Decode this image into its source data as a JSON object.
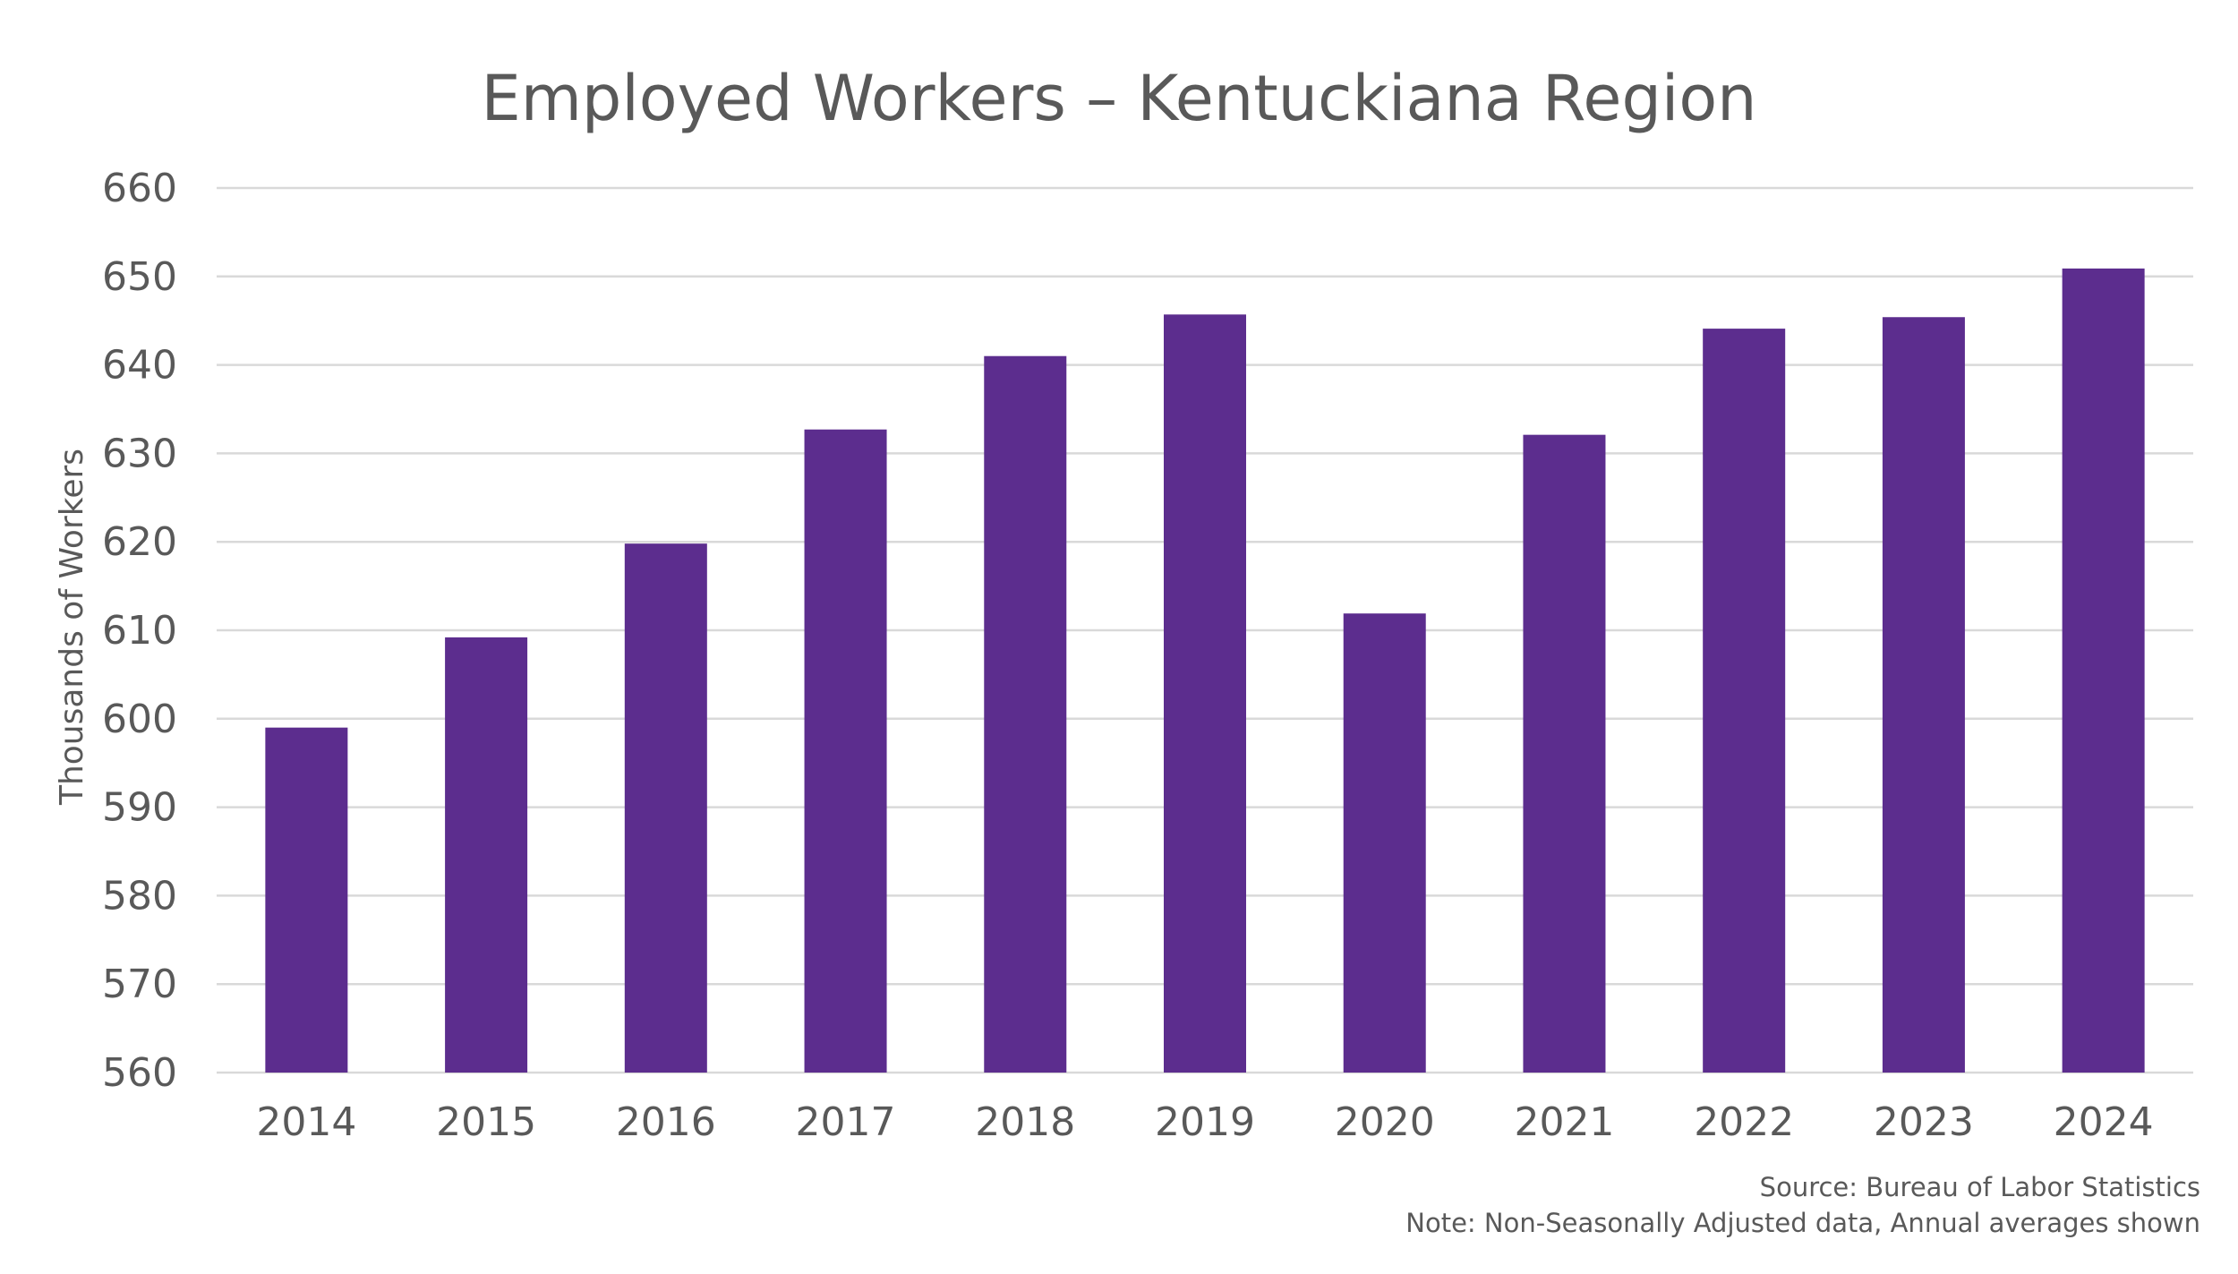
{
  "chart_data": {
    "type": "bar",
    "title": "Employed Workers – Kentuckiana Region",
    "xlabel": "",
    "ylabel": "Thousands of Workers",
    "categories": [
      "2014",
      "2015",
      "2016",
      "2017",
      "2018",
      "2019",
      "2020",
      "2021",
      "2022",
      "2023",
      "2024"
    ],
    "values": [
      599.0,
      609.2,
      619.8,
      632.7,
      641.0,
      645.7,
      611.9,
      632.1,
      644.1,
      645.4,
      650.9
    ],
    "ylim": [
      560,
      660
    ],
    "yticks": [
      "560",
      "570",
      "580",
      "590",
      "600",
      "610",
      "620",
      "630",
      "640",
      "650",
      "660"
    ],
    "bar_color": "#5c2d8e",
    "grid": true,
    "legend": "none"
  },
  "notes": {
    "source": "Source: Bureau of Labor Statistics",
    "note": "Note: Non-Seasonally Adjusted data, Annual averages shown"
  }
}
